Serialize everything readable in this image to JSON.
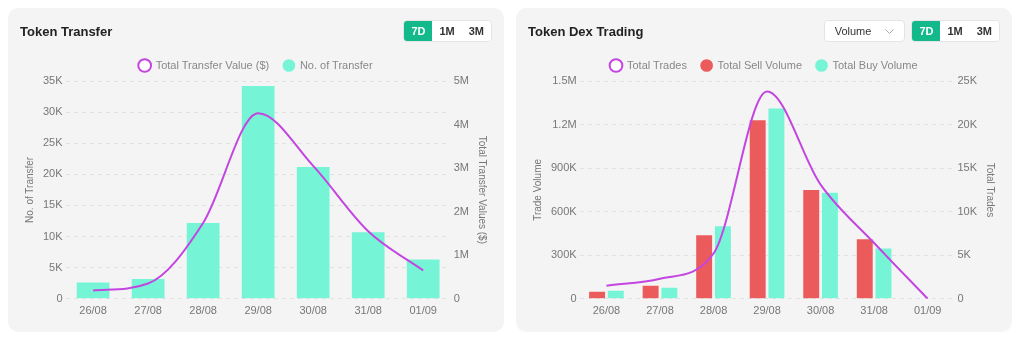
{
  "chart_data": [
    {
      "type": "bar",
      "title": "Token Transfer",
      "categories": [
        "26/08",
        "27/08",
        "28/08",
        "29/08",
        "30/08",
        "31/08",
        "01/09"
      ],
      "series": [
        {
          "name": "Total Transfer Value ($)",
          "type": "line",
          "axis": "y2",
          "color": "#c346e0",
          "values": [
            190000,
            350000,
            1740000,
            4260000,
            3050000,
            1550000,
            650000
          ]
        },
        {
          "name": "No. of Transfer",
          "color": "#76f5d6",
          "values": [
            2600,
            3200,
            12200,
            34200,
            21200,
            10700,
            6300
          ]
        }
      ],
      "ylabel": "No. of Transfer",
      "y2label": "Total Transfer Values ($)",
      "ylim": [
        0,
        35000
      ],
      "yticks": [
        0,
        {
          "value": 5000,
          "label": "5K"
        },
        {
          "value": 10000,
          "label": "10K"
        },
        {
          "value": 15000,
          "label": "15K"
        },
        {
          "value": 20000,
          "label": "20K"
        },
        {
          "value": 25000,
          "label": "25K"
        },
        {
          "value": 30000,
          "label": "30K"
        },
        {
          "value": 35000,
          "label": "35K"
        }
      ],
      "y2lim": [
        0,
        5000000
      ],
      "y2ticks": [
        0,
        {
          "value": 1000000,
          "label": "1M"
        },
        {
          "value": 2000000,
          "label": "2M"
        },
        {
          "value": 3000000,
          "label": "3M"
        },
        {
          "value": 4000000,
          "label": "4M"
        },
        {
          "value": 5000000,
          "label": "5M"
        }
      ],
      "grid": "y",
      "legend": "top",
      "annotations": [
        "7D",
        "1M",
        "3M"
      ]
    },
    {
      "type": "bar",
      "title": "Token Dex Trading",
      "categories": [
        "26/08",
        "27/08",
        "28/08",
        "29/08",
        "30/08",
        "31/08",
        "01/09"
      ],
      "series": [
        {
          "name": "Total Trades",
          "type": "line",
          "axis": "y2",
          "color": "#c346e0",
          "values": [
            1500,
            2300,
            5200,
            23800,
            13100,
            6400,
            0
          ]
        },
        {
          "name": "Total Sell Volume",
          "color": "#ec5b5b",
          "values": [
            49000,
            90000,
            438000,
            1230000,
            750000,
            410000,
            null
          ]
        },
        {
          "name": "Total Buy Volume",
          "color": "#76f5d6",
          "values": [
            56000,
            76000,
            500000,
            1310000,
            730000,
            347000,
            null
          ]
        }
      ],
      "ylabel": "Trade Volume",
      "y2label": "Total Trades",
      "ylim": [
        0,
        1500000
      ],
      "yticks": [
        0,
        {
          "value": 300000,
          "label": "300K"
        },
        {
          "value": 600000,
          "label": "600K"
        },
        {
          "value": 900000,
          "label": "900K"
        },
        {
          "value": 1200000,
          "label": "1.2M"
        },
        {
          "value": 1500000,
          "label": "1.5M"
        }
      ],
      "y2lim": [
        0,
        25000
      ],
      "y2ticks": [
        0,
        {
          "value": 5000,
          "label": "5K"
        },
        {
          "value": 10000,
          "label": "10K"
        },
        {
          "value": 15000,
          "label": "15K"
        },
        {
          "value": 20000,
          "label": "20K"
        },
        {
          "value": 25000,
          "label": "25K"
        }
      ],
      "grid": "y",
      "legend": "top",
      "annotations": [
        "Volume",
        "7D",
        "1M",
        "3M"
      ]
    }
  ]
}
